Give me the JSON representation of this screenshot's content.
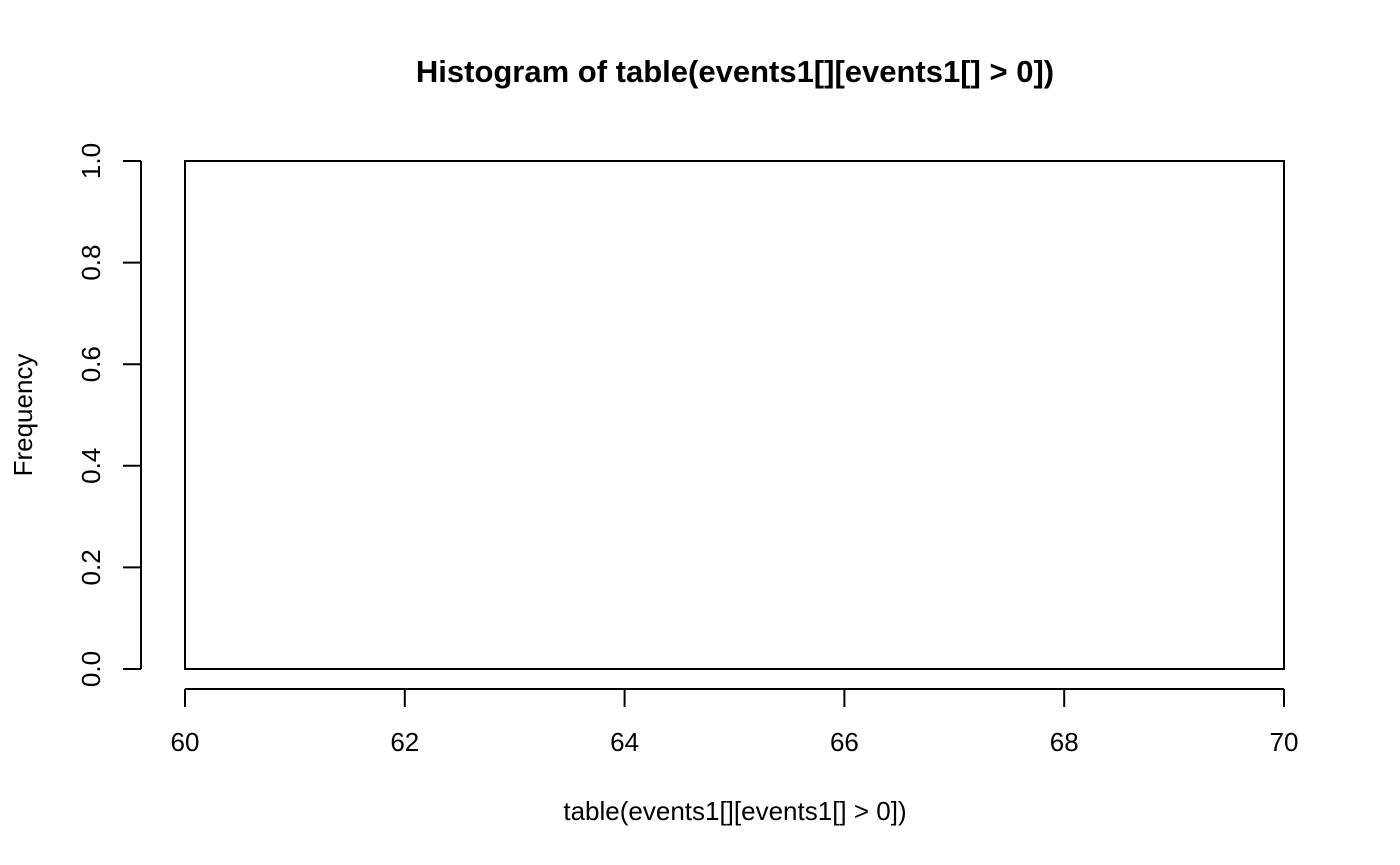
{
  "chart_data": {
    "type": "bar",
    "title": "Histogram of table(events1[][events1[] > 0])",
    "xlabel": "table(events1[][events1[] > 0])",
    "ylabel": "Frequency",
    "xlim": [
      60,
      70
    ],
    "ylim": [
      0,
      1
    ],
    "x_ticks": [
      "60",
      "62",
      "64",
      "66",
      "68",
      "70"
    ],
    "y_ticks": [
      "0.0",
      "0.2",
      "0.4",
      "0.6",
      "0.8",
      "1.0"
    ],
    "bins": [
      {
        "start": 60,
        "end": 70,
        "count": 1
      }
    ],
    "grid": false,
    "colors": {
      "background": "#ffffff",
      "foreground": "#000000",
      "bar_fill": "#ffffff"
    }
  }
}
